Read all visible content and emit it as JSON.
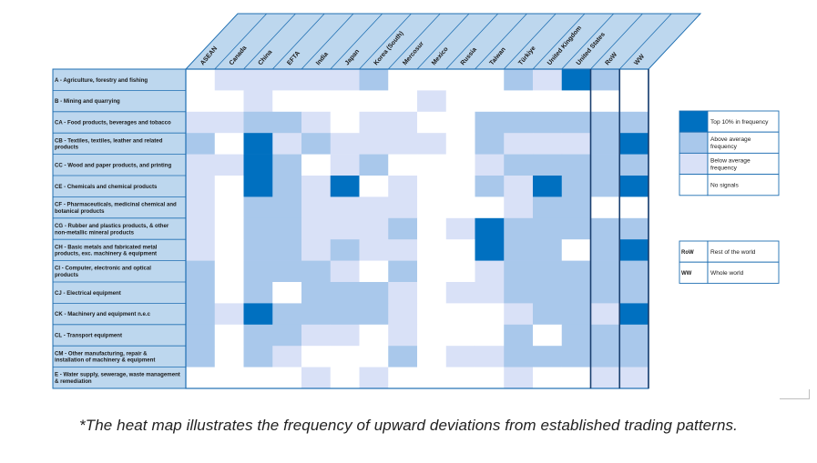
{
  "caption": "*The heat map illustrates the frequency of upward deviations from established trading patterns.",
  "colors": {
    "top": "#0070c0",
    "above": "#a9c8eb",
    "below": "#d9e1f7",
    "none": "#ffffff",
    "header_fill": "#bdd7ee",
    "grid_line": "#1f6fb2"
  },
  "chart_data": {
    "type": "heatmap",
    "title": "",
    "columns": [
      "ASEAN",
      "Canada",
      "China",
      "EFTA",
      "India",
      "Japan",
      "Korea (South)",
      "Mercosur",
      "Mexico",
      "Russia",
      "Taiwan",
      "Türkiye",
      "United Kingdom",
      "United States",
      "RoW",
      "WW"
    ],
    "rows": [
      "A - Agriculture, forestry and fishing",
      "B - Mining and quarrying",
      "CA - Food products, beverages and tobacco",
      "CB - Textiles, textiles, leather and related products",
      "CC - Wood and paper products, and printing",
      "CE - Chemicals and chemical products",
      "CF - Pharmaceuticals, medicinal chemical and botanical products",
      "CG - Rubber and plastics products, & other non-metallic mineral products",
      "CH - Basic metals and fabricated metal products, exc. machinery & equipment",
      "CI - Computer, electronic and optical products",
      "CJ - Electrical equipment",
      "CK - Machinery and equipment n.e.c",
      "CL - Transport equipment",
      "CM - Other manufacturing, repair & installation of machinery & equipment",
      "E - Water supply, sewerage, waste management & remediation"
    ],
    "levels": [
      "No signals",
      "Below average frequency",
      "Above average frequency",
      "Top 10% in frequency"
    ],
    "values": [
      [
        0,
        1,
        1,
        1,
        1,
        1,
        2,
        0,
        0,
        0,
        0,
        2,
        1,
        3,
        2,
        0
      ],
      [
        0,
        0,
        1,
        0,
        0,
        0,
        0,
        0,
        1,
        0,
        0,
        0,
        0,
        0,
        0,
        0
      ],
      [
        1,
        1,
        2,
        2,
        1,
        0,
        1,
        1,
        0,
        0,
        2,
        2,
        2,
        2,
        2,
        2
      ],
      [
        2,
        0,
        3,
        1,
        2,
        1,
        1,
        1,
        1,
        0,
        2,
        1,
        1,
        1,
        2,
        3
      ],
      [
        1,
        1,
        3,
        2,
        0,
        1,
        2,
        0,
        0,
        0,
        1,
        2,
        2,
        2,
        2,
        2
      ],
      [
        1,
        0,
        3,
        2,
        1,
        3,
        0,
        1,
        0,
        0,
        2,
        1,
        3,
        2,
        2,
        3
      ],
      [
        1,
        0,
        2,
        2,
        1,
        1,
        1,
        1,
        0,
        0,
        0,
        1,
        2,
        2,
        0,
        0
      ],
      [
        1,
        0,
        2,
        2,
        1,
        1,
        1,
        2,
        0,
        1,
        3,
        2,
        2,
        2,
        2,
        2
      ],
      [
        1,
        0,
        2,
        2,
        1,
        2,
        1,
        1,
        0,
        0,
        3,
        2,
        2,
        0,
        2,
        3
      ],
      [
        2,
        0,
        2,
        2,
        2,
        1,
        0,
        2,
        0,
        0,
        1,
        2,
        2,
        2,
        2,
        2
      ],
      [
        2,
        0,
        2,
        0,
        2,
        2,
        2,
        1,
        0,
        1,
        1,
        2,
        2,
        2,
        2,
        2
      ],
      [
        2,
        1,
        3,
        2,
        2,
        2,
        2,
        1,
        0,
        0,
        0,
        1,
        2,
        2,
        1,
        3
      ],
      [
        2,
        0,
        2,
        2,
        1,
        1,
        0,
        1,
        0,
        0,
        0,
        2,
        0,
        2,
        2,
        2
      ],
      [
        2,
        0,
        2,
        1,
        0,
        0,
        0,
        2,
        0,
        1,
        1,
        2,
        2,
        2,
        2,
        2
      ],
      [
        0,
        0,
        0,
        0,
        1,
        0,
        1,
        0,
        0,
        0,
        0,
        1,
        0,
        0,
        1,
        1
      ]
    ]
  },
  "legend": {
    "items": [
      {
        "label": "Top 10% in frequency",
        "level": 3
      },
      {
        "label": "Above average frequency",
        "level": 2
      },
      {
        "label": "Below average frequency",
        "level": 1
      },
      {
        "label": "No signals",
        "level": 0
      }
    ],
    "abbreviations": [
      {
        "code": "RoW",
        "label": "Rest of the world"
      },
      {
        "code": "WW",
        "label": "Whole world"
      }
    ]
  }
}
